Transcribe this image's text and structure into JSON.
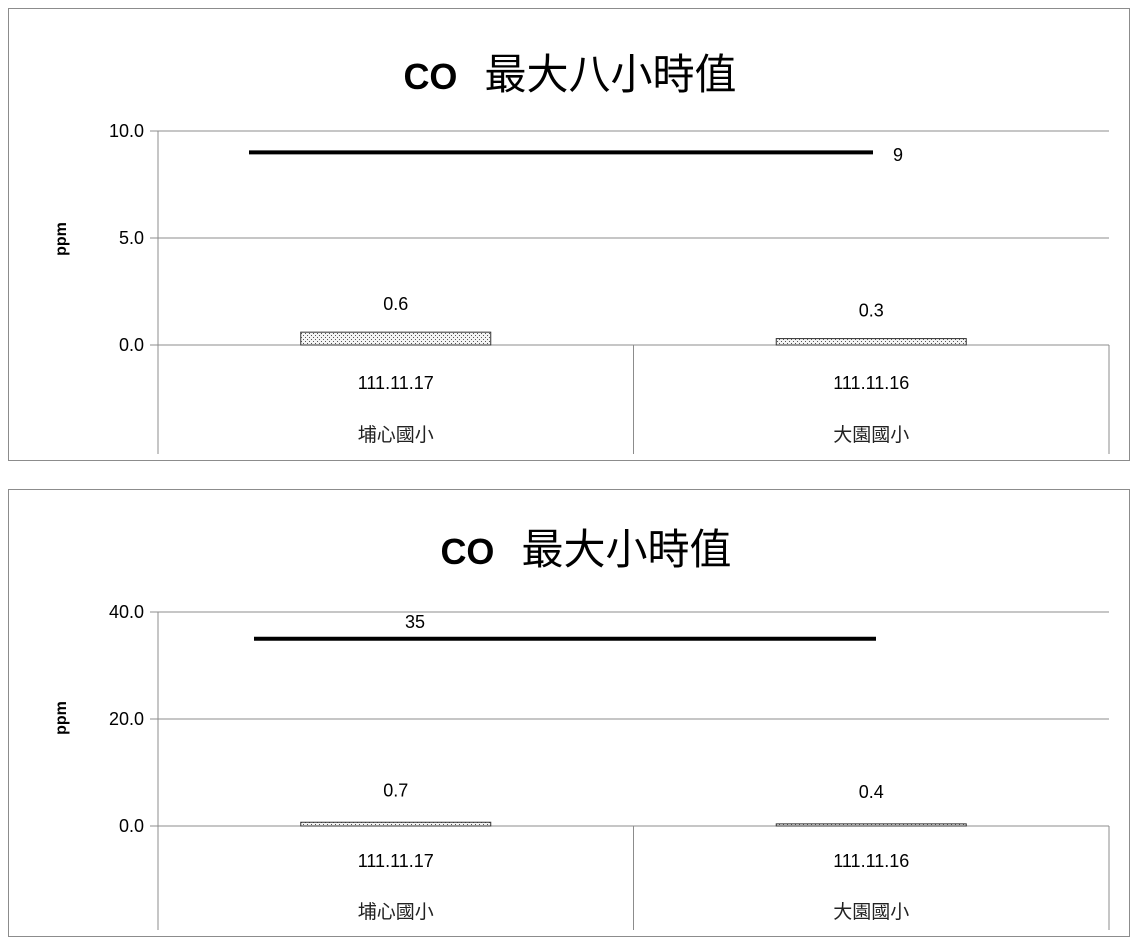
{
  "chart_data": [
    {
      "type": "bar",
      "title_latin": "CO",
      "title_cjk": "最大八小時值",
      "ylabel": "ppm",
      "ylim": [
        0,
        10
      ],
      "yticks": [
        "10.0",
        "5.0",
        "0.0"
      ],
      "ytick_values": [
        10,
        5,
        0
      ],
      "categories": [
        {
          "date": "111.11.17",
          "site": "埔心國小"
        },
        {
          "date": "111.11.16",
          "site": "大園國小"
        }
      ],
      "values": [
        0.6,
        0.3
      ],
      "value_labels": [
        "0.6",
        "0.3"
      ],
      "standard": {
        "value": 9,
        "label": "9"
      },
      "grid": true
    },
    {
      "type": "bar",
      "title_latin": "CO",
      "title_cjk": "最大小時值",
      "ylabel": "ppm",
      "ylim": [
        0,
        40
      ],
      "yticks": [
        "40.0",
        "20.0",
        "0.0"
      ],
      "ytick_values": [
        40,
        20,
        0
      ],
      "categories": [
        {
          "date": "111.11.17",
          "site": "埔心國小"
        },
        {
          "date": "111.11.16",
          "site": "大園國小"
        }
      ],
      "values": [
        0.7,
        0.4
      ],
      "value_labels": [
        "0.7",
        "0.4"
      ],
      "standard": {
        "value": 35,
        "label": "35"
      },
      "grid": true
    }
  ]
}
